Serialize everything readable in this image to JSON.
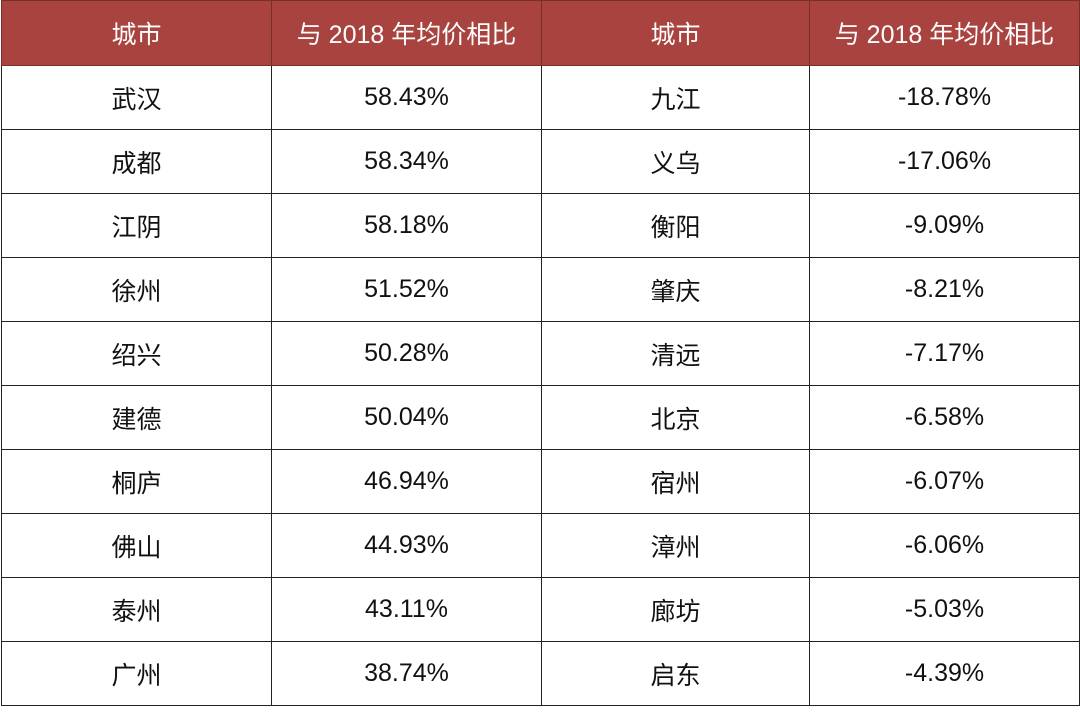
{
  "table": {
    "header": [
      "城市",
      "与 2018 年均价相比",
      "城市",
      "与 2018 年均价相比"
    ],
    "rows": [
      [
        "武汉",
        "58.43%",
        "九江",
        "-18.78%"
      ],
      [
        "成都",
        "58.34%",
        "义乌",
        "-17.06%"
      ],
      [
        "江阴",
        "58.18%",
        "衡阳",
        "-9.09%"
      ],
      [
        "徐州",
        "51.52%",
        "肇庆",
        "-8.21%"
      ],
      [
        "绍兴",
        "50.28%",
        "清远",
        "-7.17%"
      ],
      [
        "建德",
        "50.04%",
        "北京",
        "-6.58%"
      ],
      [
        "桐庐",
        "46.94%",
        "宿州",
        "-6.07%"
      ],
      [
        "佛山",
        "44.93%",
        "漳州",
        "-6.06%"
      ],
      [
        "泰州",
        "43.11%",
        "廊坊",
        "-5.03%"
      ],
      [
        "广州",
        "38.74%",
        "启东",
        "-4.39%"
      ]
    ]
  }
}
